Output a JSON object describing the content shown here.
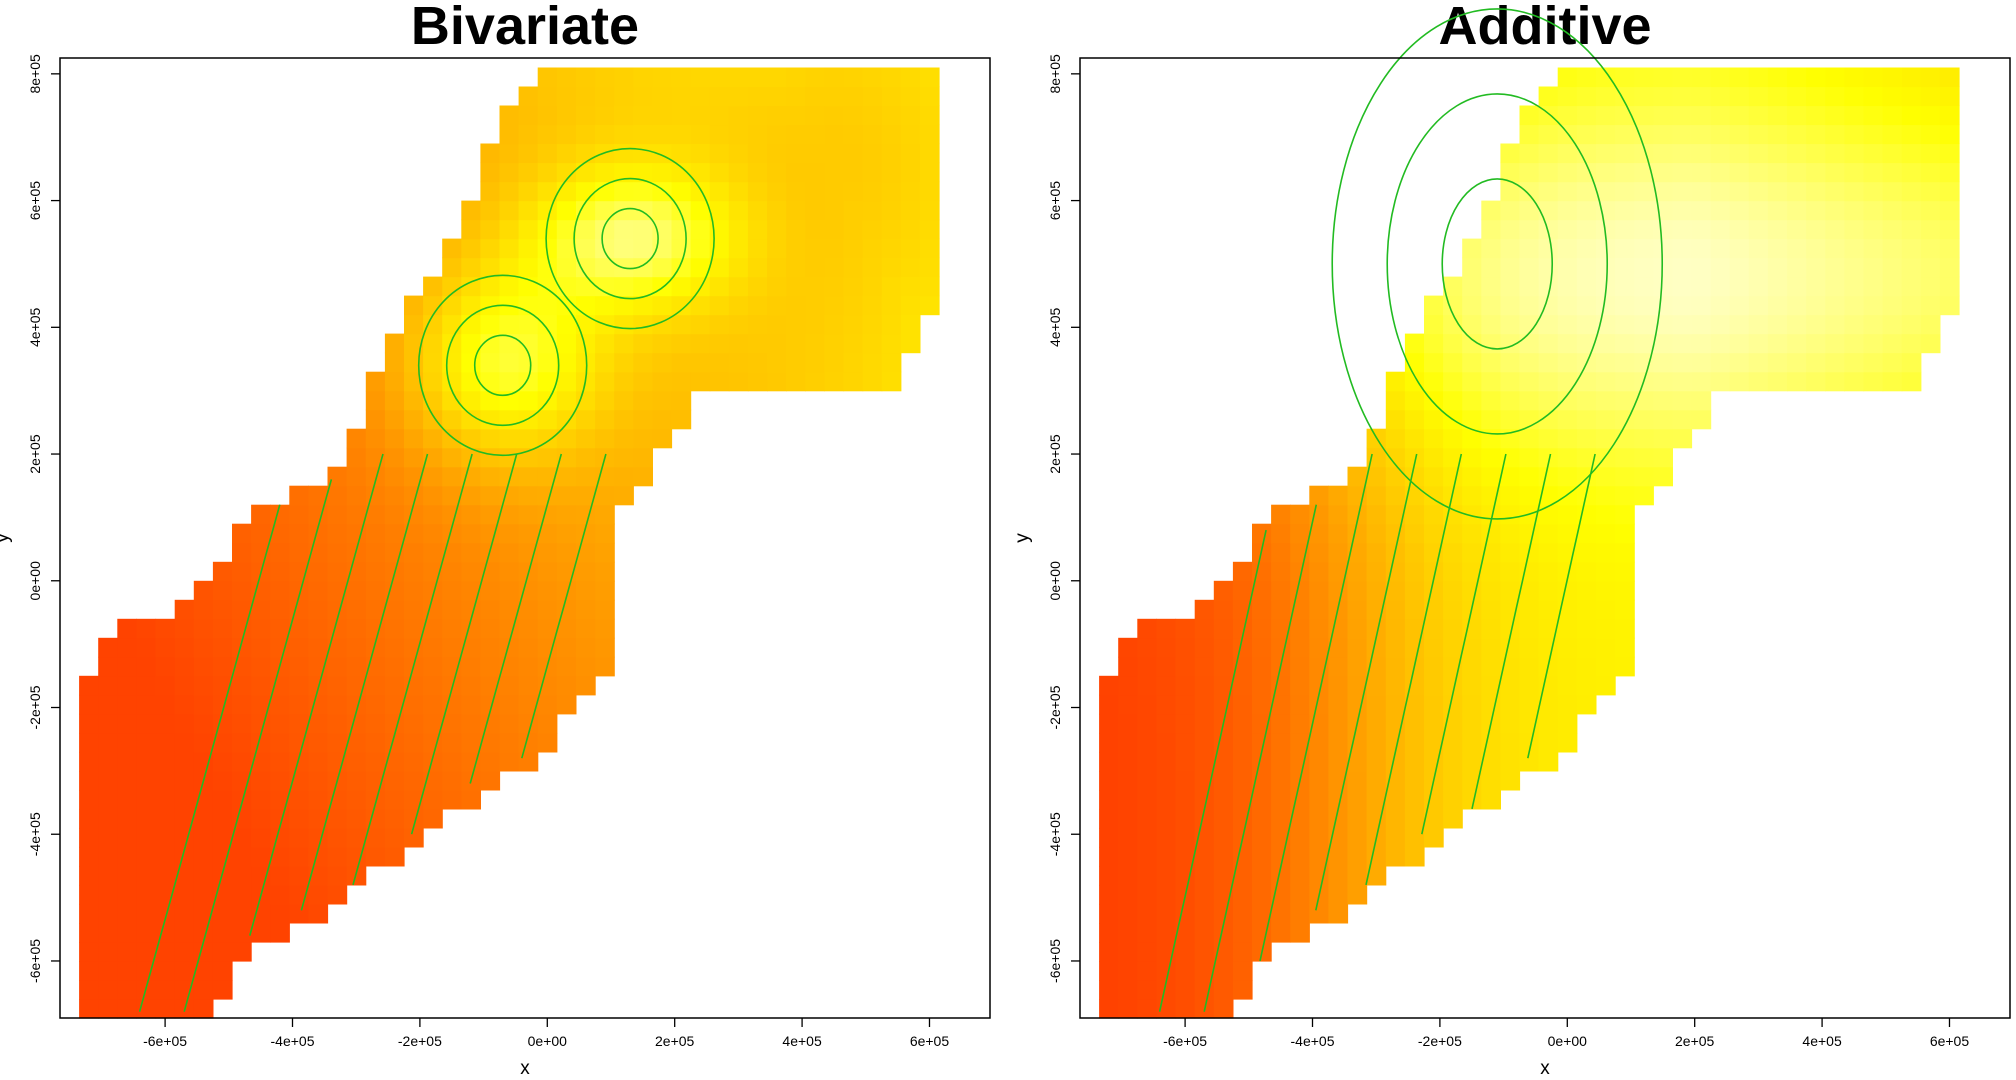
{
  "chart_data": [
    {
      "type": "heatmap",
      "title": "Bivariate",
      "xlabel": "x",
      "ylabel": "y",
      "x_ticks": [
        "-6e+05",
        "-4e+05",
        "-2e+05",
        "0e+00",
        "2e+05",
        "4e+05",
        "6e+05"
      ],
      "x_tick_values": [
        -600000,
        -400000,
        -200000,
        0,
        200000,
        400000,
        600000
      ],
      "y_ticks": [
        "-6e+05",
        "-4e+05",
        "-2e+05",
        "0e+00",
        "2e+05",
        "4e+05",
        "6e+05",
        "8e+05"
      ],
      "y_tick_values": [
        -600000,
        -400000,
        -200000,
        0,
        200000,
        400000,
        600000,
        800000
      ],
      "xlim": [
        -765000,
        695000
      ],
      "ylim": [
        -690000,
        825000
      ],
      "colormap": "heat (red to pale yellow)",
      "contour_color": "#22bb22",
      "grid": false,
      "legend": "none",
      "surface_peaks": [
        {
          "x": -70000,
          "y": 340000
        },
        {
          "x": 130000,
          "y": 540000
        }
      ],
      "low_region": {
        "x": -650000,
        "y": -200000
      }
    },
    {
      "type": "heatmap",
      "title": "Additive",
      "xlabel": "x",
      "ylabel": "y",
      "x_ticks": [
        "-6e+05",
        "-4e+05",
        "-2e+05",
        "0e+00",
        "2e+05",
        "4e+05",
        "6e+05"
      ],
      "x_tick_values": [
        -600000,
        -400000,
        -200000,
        0,
        200000,
        400000,
        600000
      ],
      "y_ticks": [
        "-6e+05",
        "-4e+05",
        "-2e+05",
        "0e+00",
        "2e+05",
        "4e+05",
        "6e+05",
        "8e+05"
      ],
      "y_tick_values": [
        -600000,
        -400000,
        -200000,
        0,
        200000,
        400000,
        600000,
        800000
      ],
      "xlim": [
        -765000,
        695000
      ],
      "ylim": [
        -690000,
        825000
      ],
      "colormap": "heat (red to pale yellow)",
      "contour_color": "#22bb22",
      "grid": false,
      "legend": "none",
      "surface_peaks": [
        {
          "x": -110000,
          "y": 500000
        }
      ],
      "low_region": {
        "x": -650000,
        "y": -200000
      }
    }
  ]
}
